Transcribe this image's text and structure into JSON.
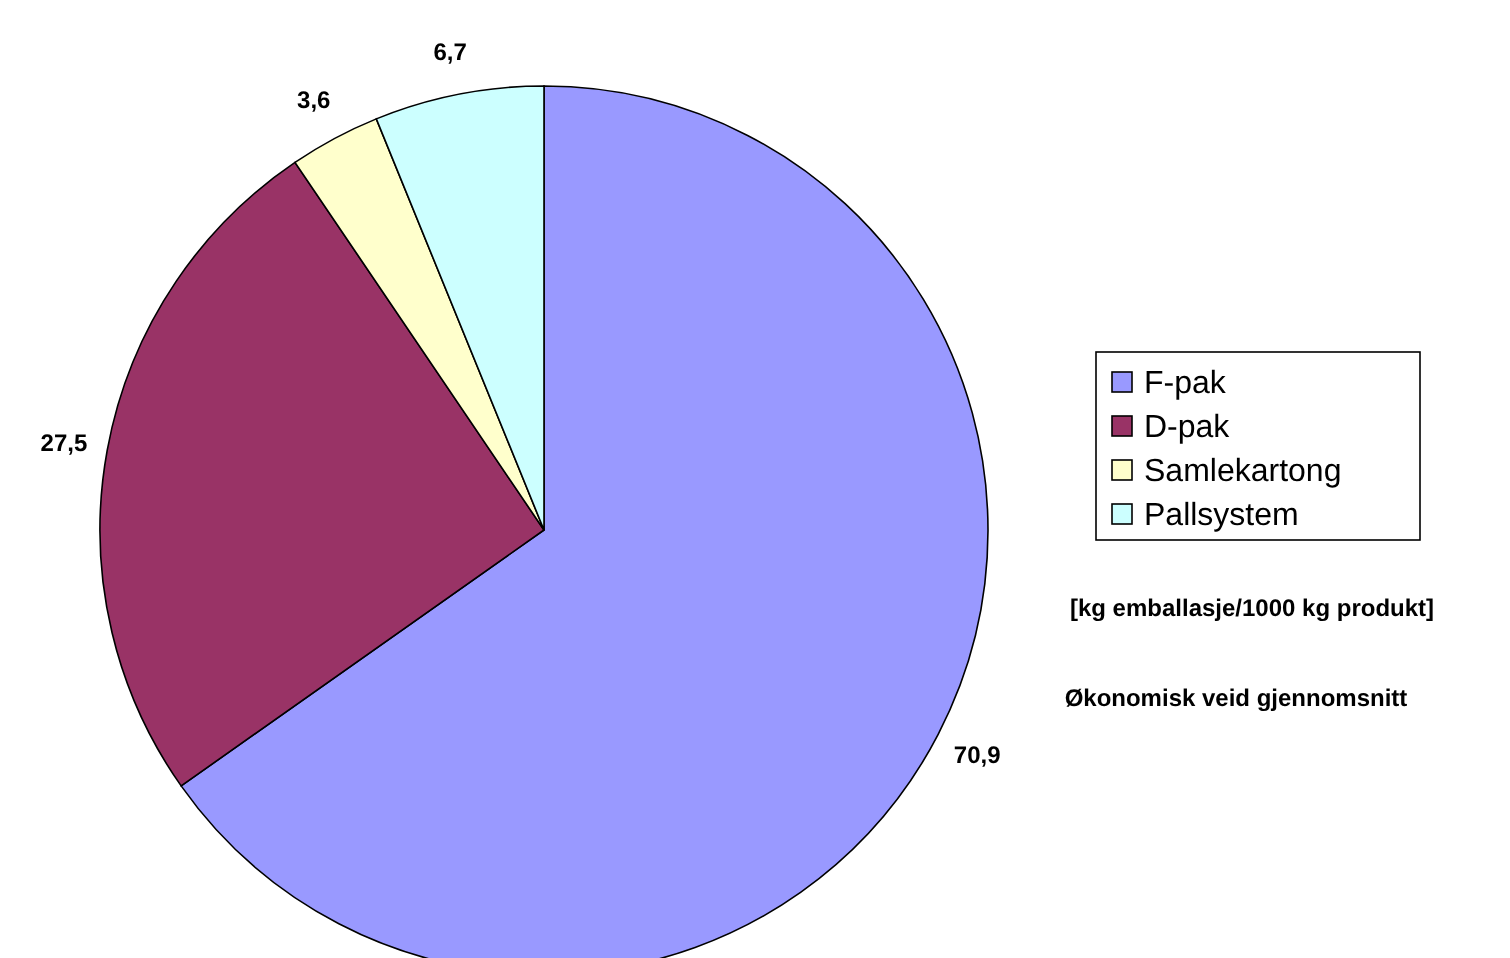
{
  "chart_data": {
    "type": "pie",
    "categories": [
      "F-pak",
      "D-pak",
      "Samlekartong",
      "Pallsystem"
    ],
    "values": [
      70.9,
      27.5,
      3.6,
      6.7
    ],
    "value_labels": [
      "70,9",
      "27,5",
      "3,6",
      "6,7"
    ],
    "colors": [
      "#9999ff",
      "#993366",
      "#ffffcc",
      "#ccffff"
    ],
    "legend": "right",
    "annotations": [
      "[kg emballasje/1000 kg produkt]",
      "Økonomisk veid gjennomsnitt"
    ]
  }
}
